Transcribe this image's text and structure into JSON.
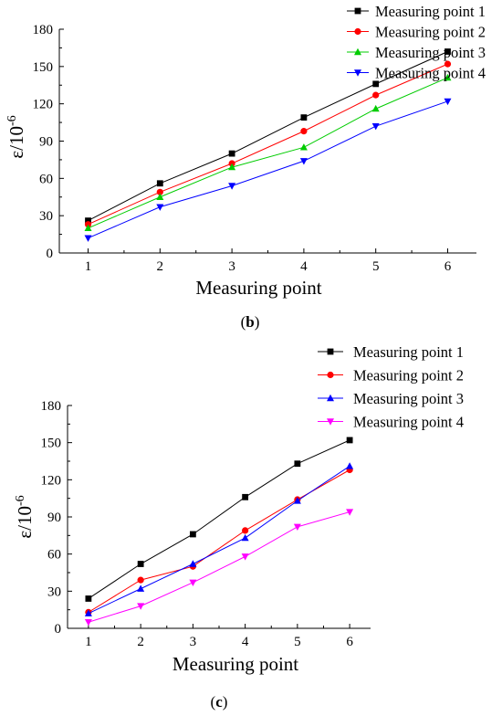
{
  "chart_data": [
    {
      "type": "line",
      "caption": "b",
      "xlabel": "Measuring point",
      "ylabel": "ε/10",
      "ylabel_exponent": "-6",
      "categories": [
        "1",
        "2",
        "3",
        "4",
        "5",
        "6"
      ],
      "x": [
        1,
        2,
        3,
        4,
        5,
        6
      ],
      "xlim": [
        0.6,
        6.4
      ],
      "ylim": [
        0,
        180
      ],
      "yticks": [
        0,
        30,
        60,
        90,
        120,
        150,
        180
      ],
      "grid": false,
      "legend_position": "top-right",
      "series": [
        {
          "name": "Measuring point 1",
          "color": "#000000",
          "marker": "square",
          "values": [
            26,
            56,
            80,
            109,
            136,
            162
          ]
        },
        {
          "name": "Measuring point 2",
          "color": "#ff0000",
          "marker": "circle",
          "values": [
            23,
            49,
            72,
            98,
            127,
            152
          ]
        },
        {
          "name": "Measuring point 3",
          "color": "#00cc00",
          "marker": "triangle-up",
          "values": [
            20,
            45,
            69,
            85,
            116,
            141
          ]
        },
        {
          "name": "Measuring point 4",
          "color": "#0000ff",
          "marker": "triangle-down",
          "values": [
            12,
            37,
            54,
            74,
            102,
            122
          ]
        }
      ]
    },
    {
      "type": "line",
      "caption": "c",
      "xlabel": "Measuring point",
      "ylabel": "ε/10",
      "ylabel_exponent": "-6",
      "categories": [
        "1",
        "2",
        "3",
        "4",
        "5",
        "6"
      ],
      "x": [
        1,
        2,
        3,
        4,
        5,
        6
      ],
      "xlim": [
        0.6,
        6.4
      ],
      "ylim": [
        0,
        180
      ],
      "yticks": [
        0,
        30,
        60,
        90,
        120,
        150,
        180
      ],
      "grid": false,
      "legend_position": "top-right",
      "series": [
        {
          "name": "Measuring point 1",
          "color": "#000000",
          "marker": "square",
          "values": [
            24,
            52,
            76,
            106,
            133,
            152
          ]
        },
        {
          "name": "Measuring point 2",
          "color": "#ff0000",
          "marker": "circle",
          "values": [
            13,
            39,
            50,
            79,
            104,
            128
          ]
        },
        {
          "name": "Measuring point 3",
          "color": "#0000ff",
          "marker": "triangle-up",
          "values": [
            12,
            32,
            52,
            73,
            103,
            131
          ]
        },
        {
          "name": "Measuring point 4",
          "color": "#ff00ff",
          "marker": "triangle-down",
          "values": [
            5,
            18,
            37,
            58,
            82,
            94
          ]
        }
      ]
    }
  ]
}
